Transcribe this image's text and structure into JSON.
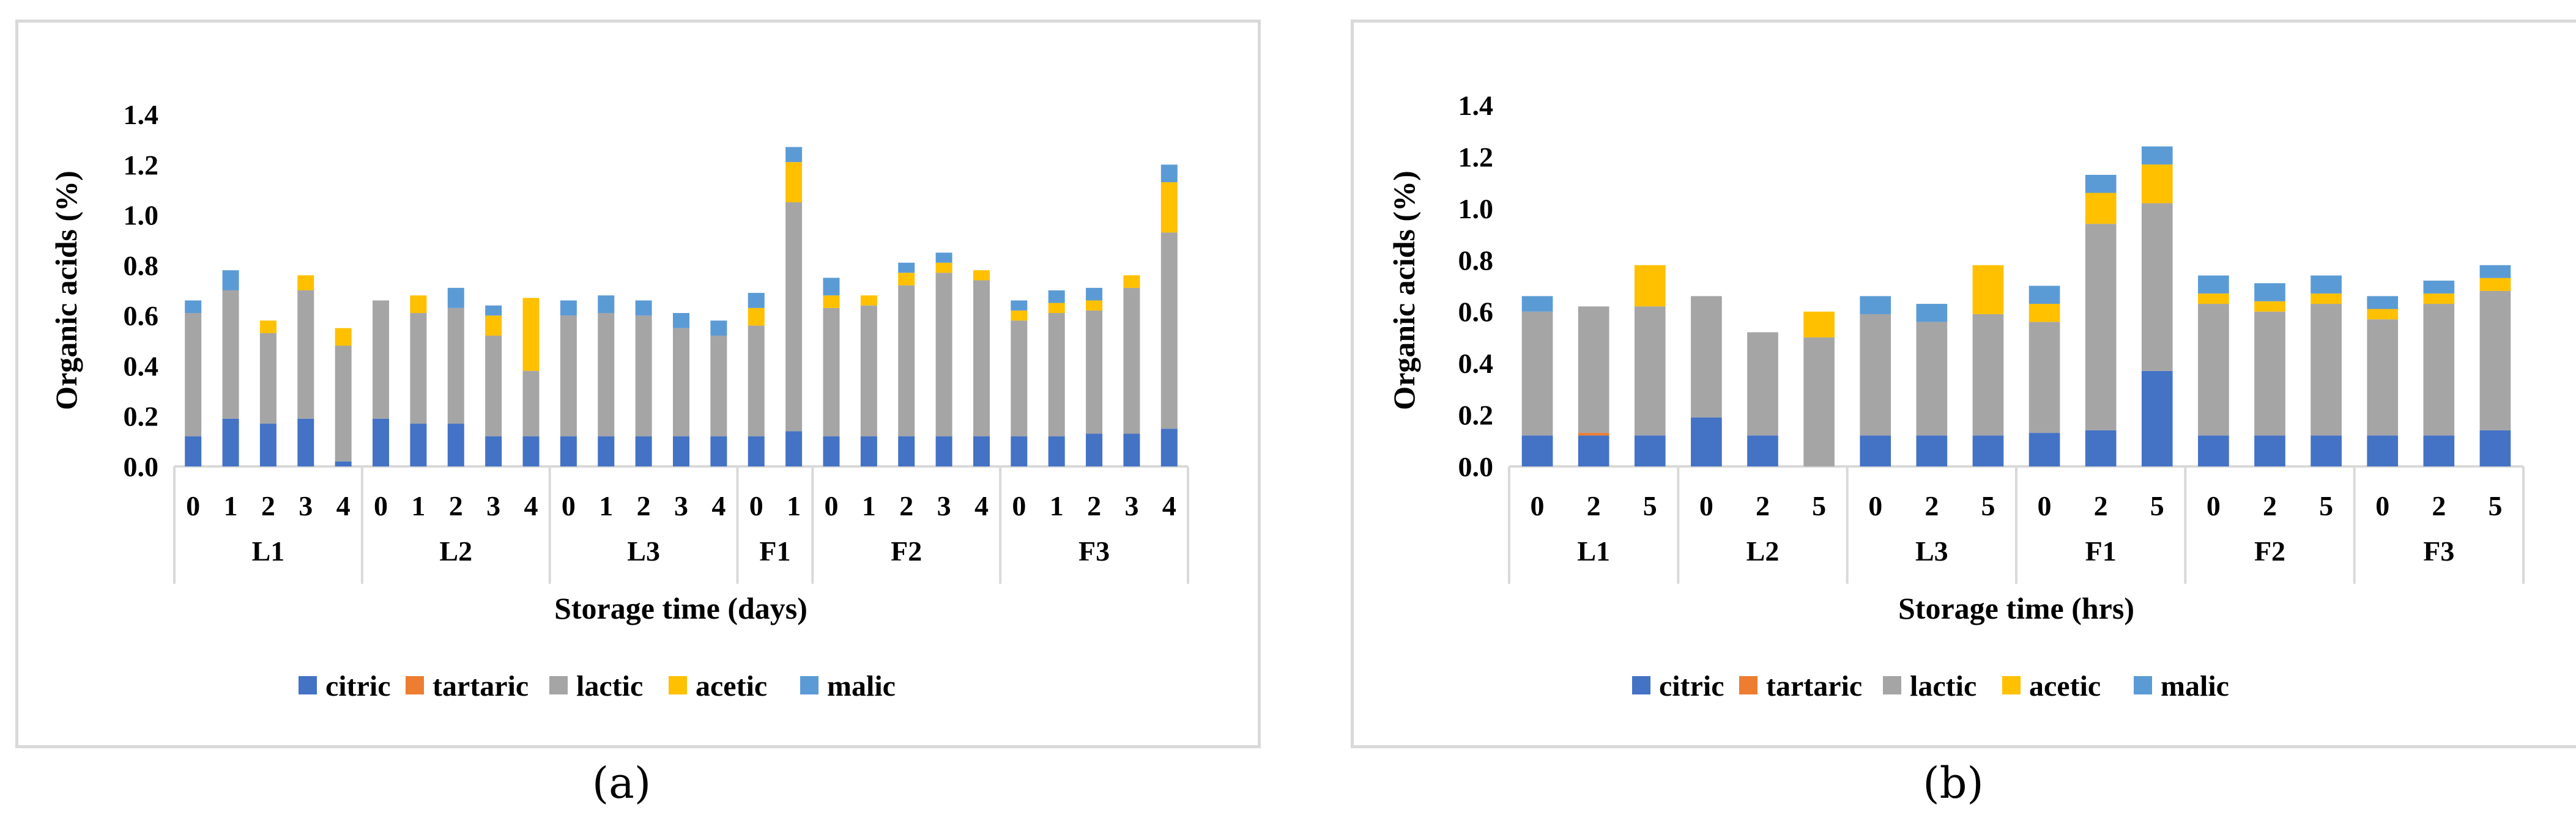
{
  "chart_data": [
    {
      "type": "bar",
      "stacked": true,
      "caption": "(a)",
      "xlabel": "Storage time (days)",
      "ylabel": "Organic acids (%)",
      "ylim": [
        0,
        1.4
      ],
      "yticks": [
        "0.0",
        "0.2",
        "0.4",
        "0.6",
        "0.8",
        "1.0",
        "1.2",
        "1.4"
      ],
      "groups": [
        {
          "name": "L1",
          "categories": [
            "0",
            "1",
            "2",
            "3",
            "4"
          ]
        },
        {
          "name": "L2",
          "categories": [
            "0",
            "1",
            "2",
            "3",
            "4"
          ]
        },
        {
          "name": "L3",
          "categories": [
            "0",
            "1",
            "2",
            "3",
            "4"
          ]
        },
        {
          "name": "F1",
          "categories": [
            "0",
            "1"
          ]
        },
        {
          "name": "F2",
          "categories": [
            "0",
            "1",
            "2",
            "3",
            "4"
          ]
        },
        {
          "name": "F3",
          "categories": [
            "0",
            "1",
            "2",
            "3",
            "4"
          ]
        }
      ],
      "series": [
        {
          "name": "citric",
          "color": "#4472c4",
          "values": [
            0.12,
            0.19,
            0.17,
            0.19,
            0.02,
            0.19,
            0.17,
            0.17,
            0.12,
            0.12,
            0.12,
            0.12,
            0.12,
            0.12,
            0.12,
            0.12,
            0.14,
            0.12,
            0.12,
            0.12,
            0.12,
            0.12,
            0.12,
            0.12,
            0.13,
            0.13,
            0.15
          ]
        },
        {
          "name": "tartaric",
          "color": "#ed7d31",
          "values": [
            0,
            0,
            0,
            0,
            0,
            0,
            0,
            0,
            0,
            0,
            0,
            0,
            0,
            0,
            0,
            0,
            0,
            0,
            0,
            0,
            0,
            0,
            0,
            0,
            0,
            0,
            0
          ]
        },
        {
          "name": "lactic",
          "color": "#a5a5a5",
          "values": [
            0.49,
            0.51,
            0.36,
            0.51,
            0.46,
            0.47,
            0.44,
            0.46,
            0.4,
            0.26,
            0.48,
            0.49,
            0.48,
            0.43,
            0.4,
            0.44,
            0.91,
            0.51,
            0.52,
            0.6,
            0.65,
            0.62,
            0.46,
            0.49,
            0.49,
            0.58,
            0.78
          ]
        },
        {
          "name": "acetic",
          "color": "#ffc000",
          "values": [
            0,
            0,
            0.05,
            0.06,
            0.07,
            0,
            0.07,
            0,
            0.08,
            0.29,
            0,
            0,
            0,
            0,
            0,
            0.07,
            0.16,
            0.05,
            0.04,
            0.05,
            0.04,
            0.04,
            0.04,
            0.04,
            0.04,
            0.05,
            0.2
          ]
        },
        {
          "name": "malic",
          "color": "#5b9bd5",
          "values": [
            0.05,
            0.08,
            0,
            0,
            0,
            0,
            0,
            0.08,
            0.04,
            0,
            0.06,
            0.07,
            0.06,
            0.06,
            0.06,
            0.06,
            0.06,
            0.07,
            0,
            0.04,
            0.04,
            0,
            0.04,
            0.05,
            0.05,
            0,
            0.07
          ]
        }
      ]
    },
    {
      "type": "bar",
      "stacked": true,
      "caption": "(b)",
      "xlabel": "Storage time (hrs)",
      "ylabel": "Organic acids (%)",
      "ylim": [
        0,
        1.4
      ],
      "yticks": [
        "0.0",
        "0.2",
        "0.4",
        "0.6",
        "0.8",
        "1.0",
        "1.2",
        "1.4"
      ],
      "groups": [
        {
          "name": "L1",
          "categories": [
            "0",
            "2",
            "5"
          ]
        },
        {
          "name": "L2",
          "categories": [
            "0",
            "2",
            "5"
          ]
        },
        {
          "name": "L3",
          "categories": [
            "0",
            "2",
            "5"
          ]
        },
        {
          "name": "F1",
          "categories": [
            "0",
            "2",
            "5"
          ]
        },
        {
          "name": "F2",
          "categories": [
            "0",
            "2",
            "5"
          ]
        },
        {
          "name": "F3",
          "categories": [
            "0",
            "2",
            "5"
          ]
        }
      ],
      "series": [
        {
          "name": "citric",
          "color": "#4472c4",
          "values": [
            0.12,
            0.12,
            0.12,
            0.19,
            0.12,
            0,
            0.12,
            0.12,
            0.12,
            0.13,
            0.14,
            0.37,
            0.12,
            0.12,
            0.12,
            0.12,
            0.12,
            0.14
          ]
        },
        {
          "name": "tartaric",
          "color": "#ed7d31",
          "values": [
            0,
            0.01,
            0,
            0,
            0,
            0,
            0,
            0,
            0,
            0,
            0,
            0,
            0,
            0,
            0,
            0,
            0,
            0
          ]
        },
        {
          "name": "lactic",
          "color": "#a5a5a5",
          "values": [
            0.48,
            0.49,
            0.5,
            0.47,
            0.4,
            0.5,
            0.47,
            0.44,
            0.47,
            0.43,
            0.8,
            0.65,
            0.51,
            0.48,
            0.51,
            0.45,
            0.51,
            0.54
          ]
        },
        {
          "name": "acetic",
          "color": "#ffc000",
          "values": [
            0,
            0,
            0.16,
            0,
            0,
            0.1,
            0,
            0,
            0.19,
            0.07,
            0.12,
            0.15,
            0.04,
            0.04,
            0.04,
            0.04,
            0.04,
            0.05
          ]
        },
        {
          "name": "malic",
          "color": "#5b9bd5",
          "values": [
            0.06,
            0,
            0,
            0,
            0,
            0,
            0.07,
            0.07,
            0,
            0.07,
            0.07,
            0.07,
            0.07,
            0.07,
            0.07,
            0.05,
            0.05,
            0.05
          ]
        }
      ]
    }
  ]
}
